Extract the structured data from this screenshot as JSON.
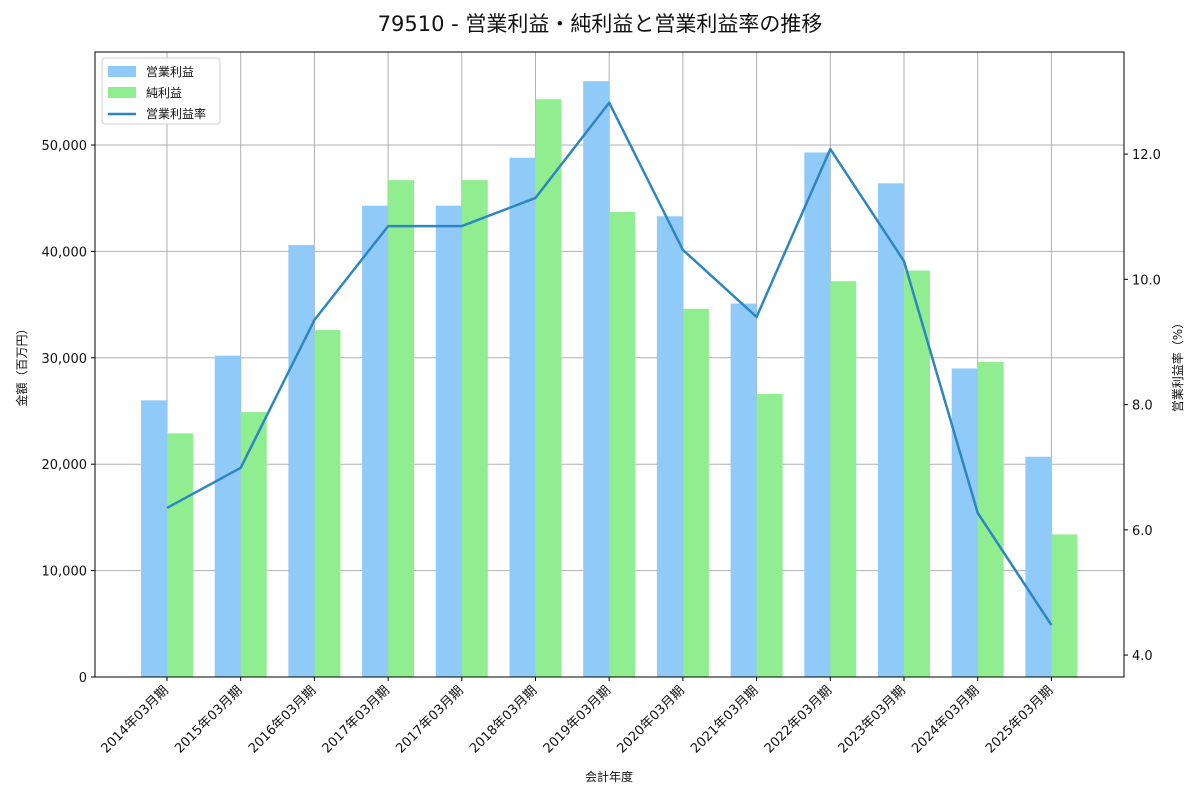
{
  "chart_data": {
    "type": "bar",
    "title": "79510 - 営業利益・純利益と営業利益率の推移",
    "xlabel": "会計年度",
    "ylabel": "金額（百万円）",
    "y2label": "営業利益率（%）",
    "categories": [
      "2014年03月期",
      "2015年03月期",
      "2016年03月期",
      "2017年03月期",
      "2017年03月期",
      "2018年03月期",
      "2019年03月期",
      "2020年03月期",
      "2021年03月期",
      "2022年03月期",
      "2023年03月期",
      "2024年03月期",
      "2025年03月期"
    ],
    "series": [
      {
        "name": "営業利益",
        "type": "bar",
        "axis": "left",
        "color": "#90caf9",
        "values": [
          26000,
          30200,
          40600,
          44300,
          44300,
          48800,
          56000,
          43300,
          35100,
          49300,
          46400,
          29000,
          20700
        ]
      },
      {
        "name": "純利益",
        "type": "bar",
        "axis": "left",
        "color": "#90ee90",
        "values": [
          22900,
          24900,
          32600,
          46700,
          46700,
          54300,
          43700,
          34600,
          26600,
          37200,
          38200,
          29600,
          13400
        ]
      },
      {
        "name": "営業利益率",
        "type": "line",
        "axis": "right",
        "color": "#2e86c1",
        "values": [
          6.35,
          6.99,
          9.35,
          10.85,
          10.85,
          11.3,
          12.82,
          10.47,
          9.4,
          12.08,
          10.29,
          6.27,
          4.48
        ]
      }
    ],
    "ylim": [
      0,
      58740
    ],
    "y2lim": [
      3.65,
      13.63
    ],
    "yticks": [
      0,
      10000,
      20000,
      30000,
      40000,
      50000
    ],
    "ytick_labels": [
      "0",
      "10,000",
      "20,000",
      "30,000",
      "40,000",
      "50,000"
    ],
    "y2ticks": [
      4.0,
      6.0,
      8.0,
      10.0,
      12.0
    ],
    "y2tick_labels": [
      "4.0",
      "6.0",
      "8.0",
      "10.0",
      "12.0"
    ],
    "grid": true,
    "legend_position": "upper left"
  }
}
